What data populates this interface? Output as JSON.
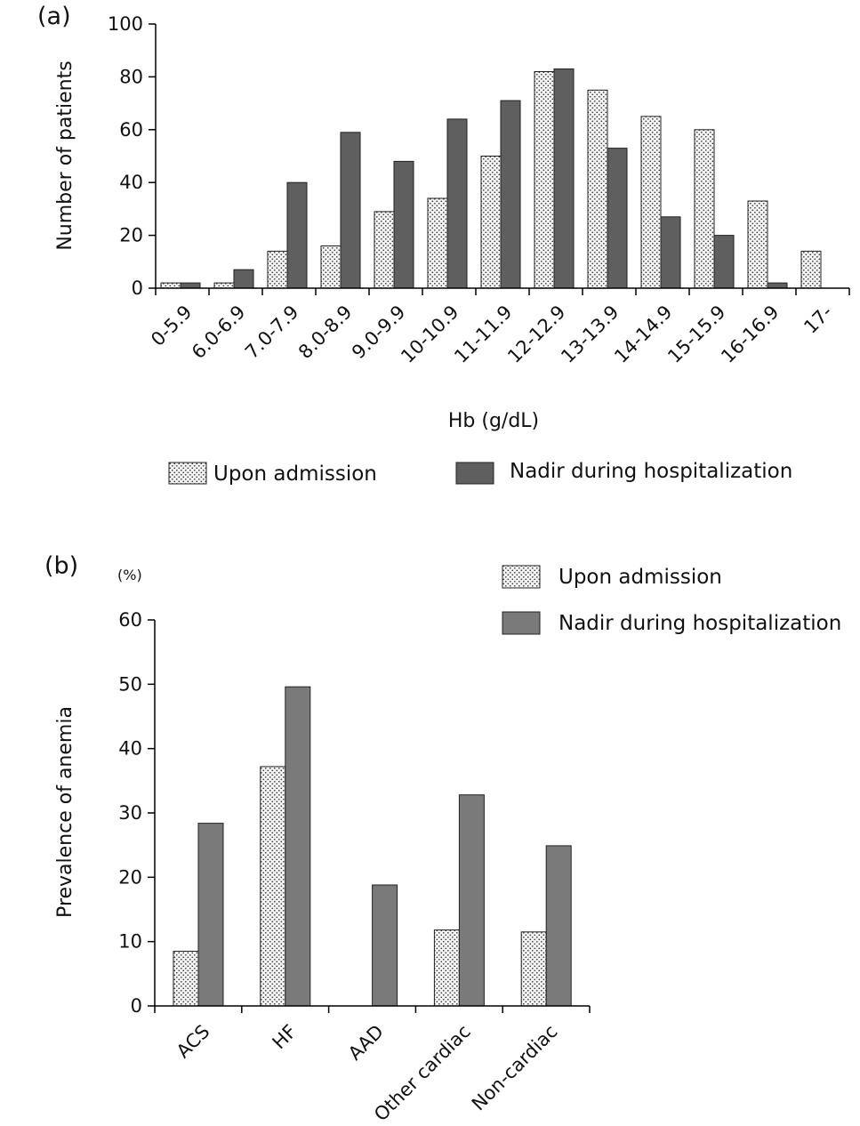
{
  "chart_data": [
    {
      "type": "bar",
      "panel": "(a)",
      "title": "",
      "xlabel": "Hb (g/dL)",
      "ylabel": "Number of patients",
      "ylim": [
        0,
        100
      ],
      "yticks": [
        "0",
        "20",
        "40",
        "60",
        "80",
        "100"
      ],
      "grid": false,
      "legend_position": "bottom",
      "categories": [
        "0-5.9",
        "6.0-6.9",
        "7.0-7.9",
        "8.0-8.9",
        "9.0-9.9",
        "10-10.9",
        "11-11.9",
        "12-12.9",
        "13-13.9",
        "14-14.9",
        "15-15.9",
        "16-16.9",
        "17-"
      ],
      "series": [
        {
          "name": "Upon admission",
          "values": [
            2,
            2,
            14,
            16,
            29,
            34,
            50,
            82,
            75,
            65,
            60,
            33,
            14
          ],
          "color": "#f2f2f2",
          "pattern": "dots"
        },
        {
          "name": "Nadir during hospitalization",
          "values": [
            2,
            7,
            40,
            59,
            48,
            64,
            71,
            83,
            53,
            27,
            20,
            2,
            0
          ],
          "color": "#5f5f5f"
        }
      ]
    },
    {
      "type": "bar",
      "panel": "(b)",
      "title": "",
      "xlabel": "",
      "ylabel": "Prevalence of anemia",
      "unit_label": "(%)",
      "ylim": [
        0,
        60
      ],
      "yticks": [
        "0",
        "10",
        "20",
        "30",
        "40",
        "50",
        "60"
      ],
      "grid": false,
      "legend_position": "top-right",
      "categories": [
        "ACS",
        "HF",
        "AAD",
        "Other cardiac",
        "Non-cardiac"
      ],
      "series": [
        {
          "name": "Upon admission",
          "values": [
            8.5,
            37.2,
            0,
            11.8,
            11.5
          ],
          "color": "#f2f2f2",
          "pattern": "dots"
        },
        {
          "name": "Nadir during hospitalization",
          "values": [
            28.4,
            49.6,
            18.8,
            32.8,
            24.9
          ],
          "color": "#7a7a7a"
        }
      ]
    }
  ]
}
